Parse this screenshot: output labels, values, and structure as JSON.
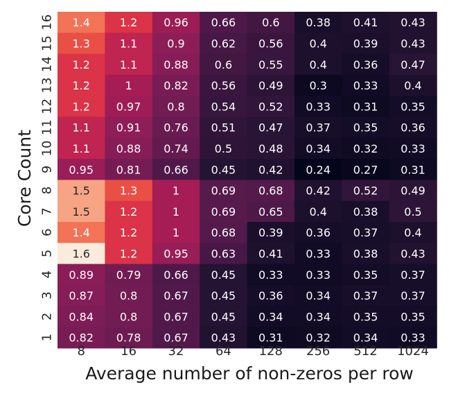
{
  "chart_data": {
    "type": "heatmap",
    "title": "",
    "xlabel": "Average number of non-zeros per row",
    "ylabel": "Core Count",
    "x_categories": [
      "8",
      "16",
      "32",
      "64",
      "128",
      "256",
      "512",
      "1024"
    ],
    "y_categories_top_to_bottom": [
      "16",
      "15",
      "14",
      "13",
      "12",
      "11",
      "10",
      "9",
      "8",
      "7",
      "6",
      "5",
      "4",
      "3",
      "2",
      "1"
    ],
    "values_top_to_bottom": [
      [
        1.4,
        1.2,
        0.96,
        0.66,
        0.6,
        0.38,
        0.41,
        0.43
      ],
      [
        1.3,
        1.1,
        0.9,
        0.62,
        0.56,
        0.4,
        0.39,
        0.43
      ],
      [
        1.2,
        1.1,
        0.88,
        0.6,
        0.55,
        0.4,
        0.36,
        0.47
      ],
      [
        1.2,
        1,
        0.82,
        0.56,
        0.49,
        0.3,
        0.33,
        0.4
      ],
      [
        1.2,
        0.97,
        0.8,
        0.54,
        0.52,
        0.33,
        0.31,
        0.35
      ],
      [
        1.1,
        0.91,
        0.76,
        0.51,
        0.47,
        0.37,
        0.35,
        0.36
      ],
      [
        1.1,
        0.88,
        0.74,
        0.5,
        0.48,
        0.34,
        0.32,
        0.33
      ],
      [
        0.95,
        0.81,
        0.66,
        0.45,
        0.42,
        0.24,
        0.27,
        0.31
      ],
      [
        1.5,
        1.3,
        1,
        0.69,
        0.68,
        0.42,
        0.52,
        0.49
      ],
      [
        1.5,
        1.2,
        1,
        0.69,
        0.65,
        0.4,
        0.38,
        0.5
      ],
      [
        1.4,
        1.2,
        1,
        0.68,
        0.39,
        0.36,
        0.37,
        0.4
      ],
      [
        1.6,
        1.2,
        0.95,
        0.63,
        0.41,
        0.33,
        0.38,
        0.43
      ],
      [
        0.89,
        0.79,
        0.66,
        0.45,
        0.33,
        0.33,
        0.35,
        0.37
      ],
      [
        0.87,
        0.8,
        0.67,
        0.45,
        0.36,
        0.34,
        0.37,
        0.37
      ],
      [
        0.84,
        0.8,
        0.67,
        0.45,
        0.34,
        0.34,
        0.35,
        0.35
      ],
      [
        0.82,
        0.78,
        0.67,
        0.43,
        0.31,
        0.32,
        0.34,
        0.33
      ]
    ],
    "colormap": "rocket",
    "value_range": [
      0.24,
      1.6
    ],
    "annotations": true,
    "grid": false,
    "legend": "none"
  }
}
